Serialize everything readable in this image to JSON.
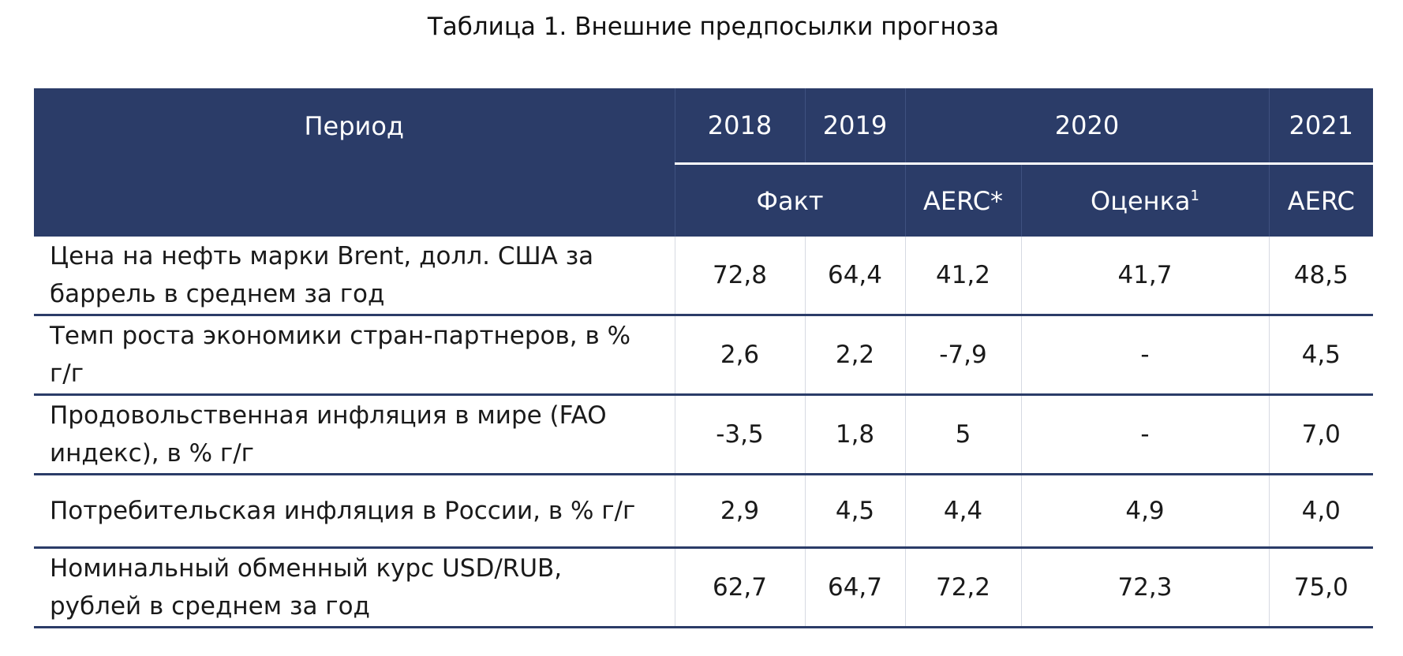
{
  "title": "Таблица 1. Внешние предпосылки прогноза",
  "header": {
    "period_label": "Период",
    "years": {
      "y2018": "2018",
      "y2019": "2019",
      "y2020": "2020",
      "y2021": "2021"
    },
    "sub": {
      "fact": "Факт",
      "aerc_2020": "AERC*",
      "estimate": "Оценка",
      "estimate_footnote": "1",
      "aerc_2021": "AERC"
    }
  },
  "rows": [
    {
      "label": "Цена на нефть марки Brent, долл. США за баррель в среднем за год",
      "v2018": "72,8",
      "v2019": "64,4",
      "v2020_aerc": "41,2",
      "v2020_est": "41,7",
      "v2021": "48,5"
    },
    {
      "label": "Темп роста экономики стран-партнеров, в % г/г",
      "v2018": "2,6",
      "v2019": "2,2",
      "v2020_aerc": "-7,9",
      "v2020_est": "-",
      "v2021": "4,5"
    },
    {
      "label": "Продовольственная инфляция в мире (FAO индекс), в % г/г",
      "v2018": "-3,5",
      "v2019": "1,8",
      "v2020_aerc": "5",
      "v2020_est": "-",
      "v2021": "7,0"
    },
    {
      "label": "Потребительская инфляция в России, в % г/г",
      "v2018": "2,9",
      "v2019": "4,5",
      "v2020_aerc": "4,4",
      "v2020_est": "4,9",
      "v2021": "4,0"
    },
    {
      "label": "Номинальный обменный курс USD/RUB, рублей в среднем за год",
      "v2018": "62,7",
      "v2019": "64,7",
      "v2020_aerc": "72,2",
      "v2020_est": "72,3",
      "v2021": "75,0"
    }
  ],
  "colors": {
    "header_bg": "#2b3c68",
    "header_text": "#ffffff",
    "row_divider": "#2b3c68"
  }
}
